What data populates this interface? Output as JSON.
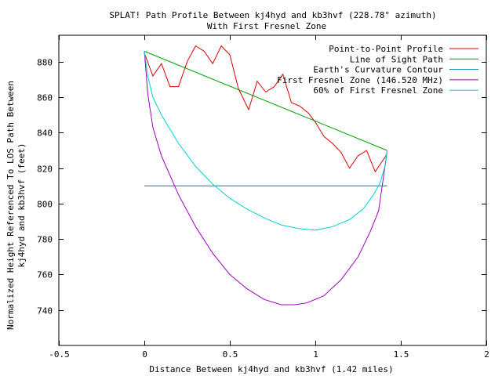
{
  "chart_data": {
    "type": "line",
    "title_line1": "SPLAT! Path Profile Between kj4hyd and kb3hvf (228.78° azimuth)",
    "title_line2": "With First Fresnel Zone",
    "xlabel": "Distance Between kj4hyd and kb3hvf (1.42 miles)",
    "ylabel_line1": "Normalized Height Referenced To LOS Path Between",
    "ylabel_line2": "kj4hyd and kb3hvf (feet)",
    "xlim": [
      -0.5,
      2
    ],
    "ylim": [
      720,
      895
    ],
    "xticks": [
      -0.5,
      0,
      0.5,
      1,
      1.5,
      2
    ],
    "xtick_labels": [
      "-0.5",
      "0",
      "0.5",
      "1",
      "1.5",
      "2"
    ],
    "yticks": [
      740,
      760,
      780,
      800,
      820,
      840,
      860,
      880
    ],
    "ytick_labels": [
      "740",
      "760",
      "780",
      "800",
      "820",
      "840",
      "860",
      "880"
    ],
    "legend_position": "top-right",
    "series": [
      {
        "name": "Point-to-Point Profile",
        "color": "#e00000",
        "points": [
          [
            0,
            885
          ],
          [
            0.05,
            872
          ],
          [
            0.1,
            879
          ],
          [
            0.15,
            866
          ],
          [
            0.2,
            866
          ],
          [
            0.25,
            880
          ],
          [
            0.3,
            889
          ],
          [
            0.35,
            886
          ],
          [
            0.4,
            879
          ],
          [
            0.45,
            889
          ],
          [
            0.5,
            884
          ],
          [
            0.55,
            865
          ],
          [
            0.61,
            853
          ],
          [
            0.66,
            869
          ],
          [
            0.71,
            863
          ],
          [
            0.76,
            866
          ],
          [
            0.81,
            873
          ],
          [
            0.86,
            857
          ],
          [
            0.91,
            855
          ],
          [
            0.96,
            851
          ],
          [
            1.0,
            846
          ],
          [
            1.05,
            838
          ],
          [
            1.1,
            834
          ],
          [
            1.15,
            829
          ],
          [
            1.2,
            820
          ],
          [
            1.25,
            827
          ],
          [
            1.3,
            830
          ],
          [
            1.35,
            818
          ],
          [
            1.42,
            828
          ]
        ]
      },
      {
        "name": "Line of Sight Path",
        "color": "#00a000",
        "points": [
          [
            0,
            886
          ],
          [
            1.42,
            830
          ]
        ]
      },
      {
        "name": "Earth's Curvature Contour",
        "color": "#0080a0",
        "points": [
          [
            0,
            810
          ],
          [
            1.42,
            810
          ]
        ]
      },
      {
        "name": "First Fresnel Zone (146.520 MHz)",
        "color": "#a000c0",
        "points": [
          [
            0,
            886
          ],
          [
            0.02,
            862
          ],
          [
            0.05,
            843
          ],
          [
            0.1,
            827
          ],
          [
            0.2,
            805
          ],
          [
            0.3,
            787
          ],
          [
            0.4,
            772
          ],
          [
            0.5,
            760
          ],
          [
            0.6,
            752
          ],
          [
            0.7,
            746
          ],
          [
            0.8,
            743
          ],
          [
            0.88,
            743
          ],
          [
            0.95,
            744
          ],
          [
            1.05,
            748
          ],
          [
            1.15,
            757
          ],
          [
            1.25,
            770
          ],
          [
            1.32,
            784
          ],
          [
            1.37,
            796
          ],
          [
            1.4,
            816
          ],
          [
            1.42,
            830
          ]
        ]
      },
      {
        "name": "60% of First Fresnel Zone",
        "color": "#00d0d0",
        "points": [
          [
            0,
            886
          ],
          [
            0.02,
            872
          ],
          [
            0.05,
            860
          ],
          [
            0.1,
            850
          ],
          [
            0.2,
            834
          ],
          [
            0.3,
            821
          ],
          [
            0.4,
            811
          ],
          [
            0.5,
            803
          ],
          [
            0.6,
            797
          ],
          [
            0.7,
            792
          ],
          [
            0.8,
            788
          ],
          [
            0.9,
            786
          ],
          [
            1.0,
            785
          ],
          [
            1.1,
            787
          ],
          [
            1.2,
            791
          ],
          [
            1.28,
            797
          ],
          [
            1.34,
            805
          ],
          [
            1.38,
            812
          ],
          [
            1.41,
            822
          ],
          [
            1.42,
            830
          ]
        ]
      }
    ]
  }
}
